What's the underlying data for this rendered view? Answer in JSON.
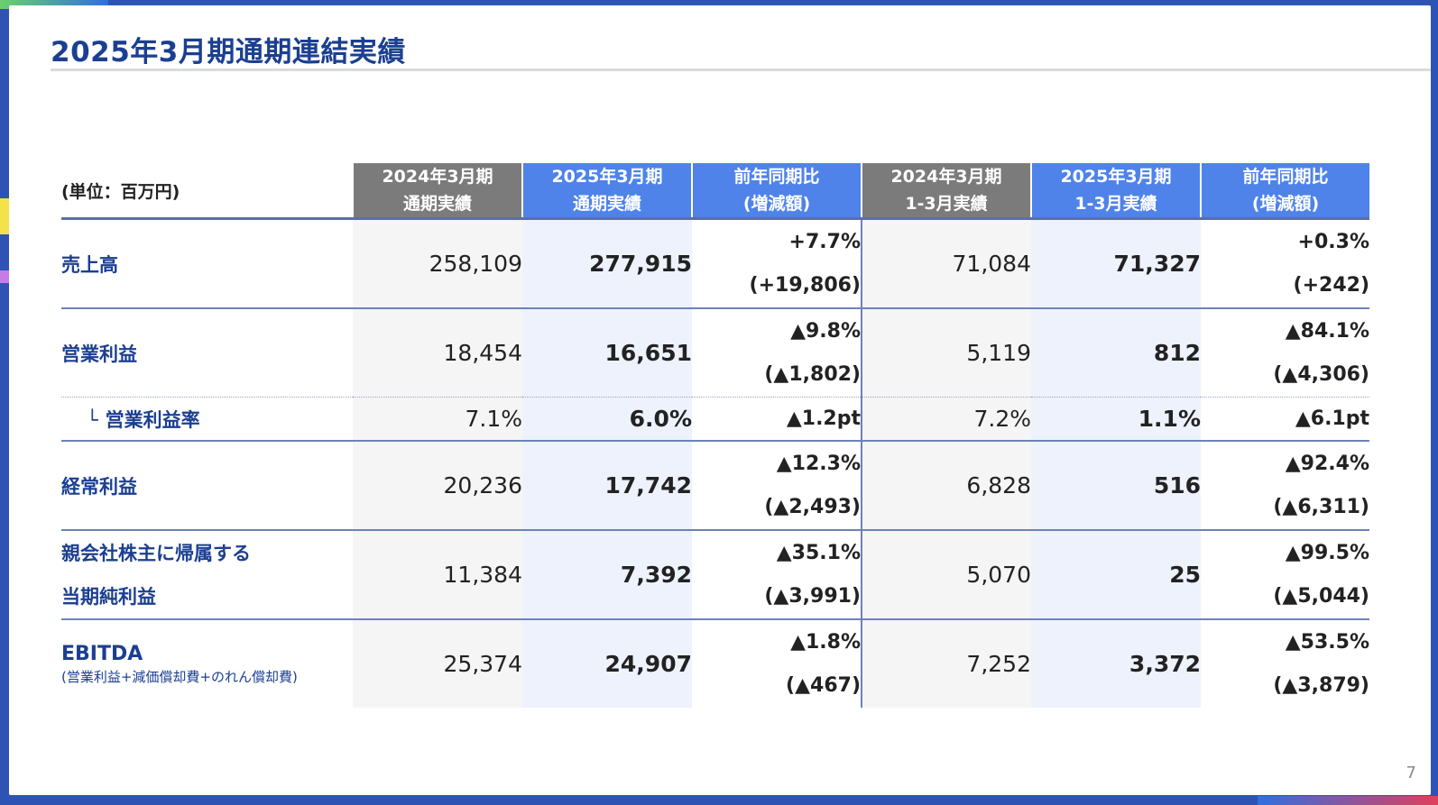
{
  "page": {
    "title": "2025年3月期通期連結実績",
    "page_number": "7"
  },
  "table": {
    "unit_label": "(単位：百万円)",
    "columns": [
      {
        "line1": "2024年3月期",
        "line2": "通期実績"
      },
      {
        "line1": "2025年3月期",
        "line2": "通期実績"
      },
      {
        "line1": "前年同期比",
        "line2": "(増減額)"
      },
      {
        "line1": "2024年3月期",
        "line2": "1-3月実績"
      },
      {
        "line1": "2025年3月期",
        "line2": "1-3月実績"
      },
      {
        "line1": "前年同期比",
        "line2": "(増減額)"
      }
    ],
    "rows": [
      {
        "label": "売上高",
        "fy_prior": "258,109",
        "fy_current": "277,915",
        "fy_diff_pct": "+7.7%",
        "fy_diff_amt": "(+19,806)",
        "q_prior": "71,084",
        "q_current": "71,327",
        "q_diff_pct": "+0.3%",
        "q_diff_amt": "(+242)"
      },
      {
        "label": "営業利益",
        "fy_prior": "18,454",
        "fy_current": "16,651",
        "fy_diff_pct": "▲9.8%",
        "fy_diff_amt": "(▲1,802)",
        "q_prior": "5,119",
        "q_current": "812",
        "q_diff_pct": "▲84.1%",
        "q_diff_amt": "(▲4,306)"
      },
      {
        "label": "営業利益率",
        "fy_prior": "7.1%",
        "fy_current": "6.0%",
        "fy_diff": "▲1.2pt",
        "q_prior": "7.2%",
        "q_current": "1.1%",
        "q_diff": "▲6.1pt"
      },
      {
        "label": "経常利益",
        "fy_prior": "20,236",
        "fy_current": "17,742",
        "fy_diff_pct": "▲12.3%",
        "fy_diff_amt": "(▲2,493)",
        "q_prior": "6,828",
        "q_current": "516",
        "q_diff_pct": "▲92.4%",
        "q_diff_amt": "(▲6,311)"
      },
      {
        "label_line1": "親会社株主に帰属する",
        "label_line2": "当期純利益",
        "fy_prior": "11,384",
        "fy_current": "7,392",
        "fy_diff_pct": "▲35.1%",
        "fy_diff_amt": "(▲3,991)",
        "q_prior": "5,070",
        "q_current": "25",
        "q_diff_pct": "▲99.5%",
        "q_diff_amt": "(▲5,044)"
      },
      {
        "label": "EBITDA",
        "label_note": "(営業利益+減価償却費+のれん償却費)",
        "fy_prior": "25,374",
        "fy_current": "24,907",
        "fy_diff_pct": "▲1.8%",
        "fy_diff_amt": "(▲467)",
        "q_prior": "7,252",
        "q_current": "3,372",
        "q_diff_pct": "▲53.5%",
        "q_diff_amt": "(▲3,879)"
      }
    ]
  }
}
